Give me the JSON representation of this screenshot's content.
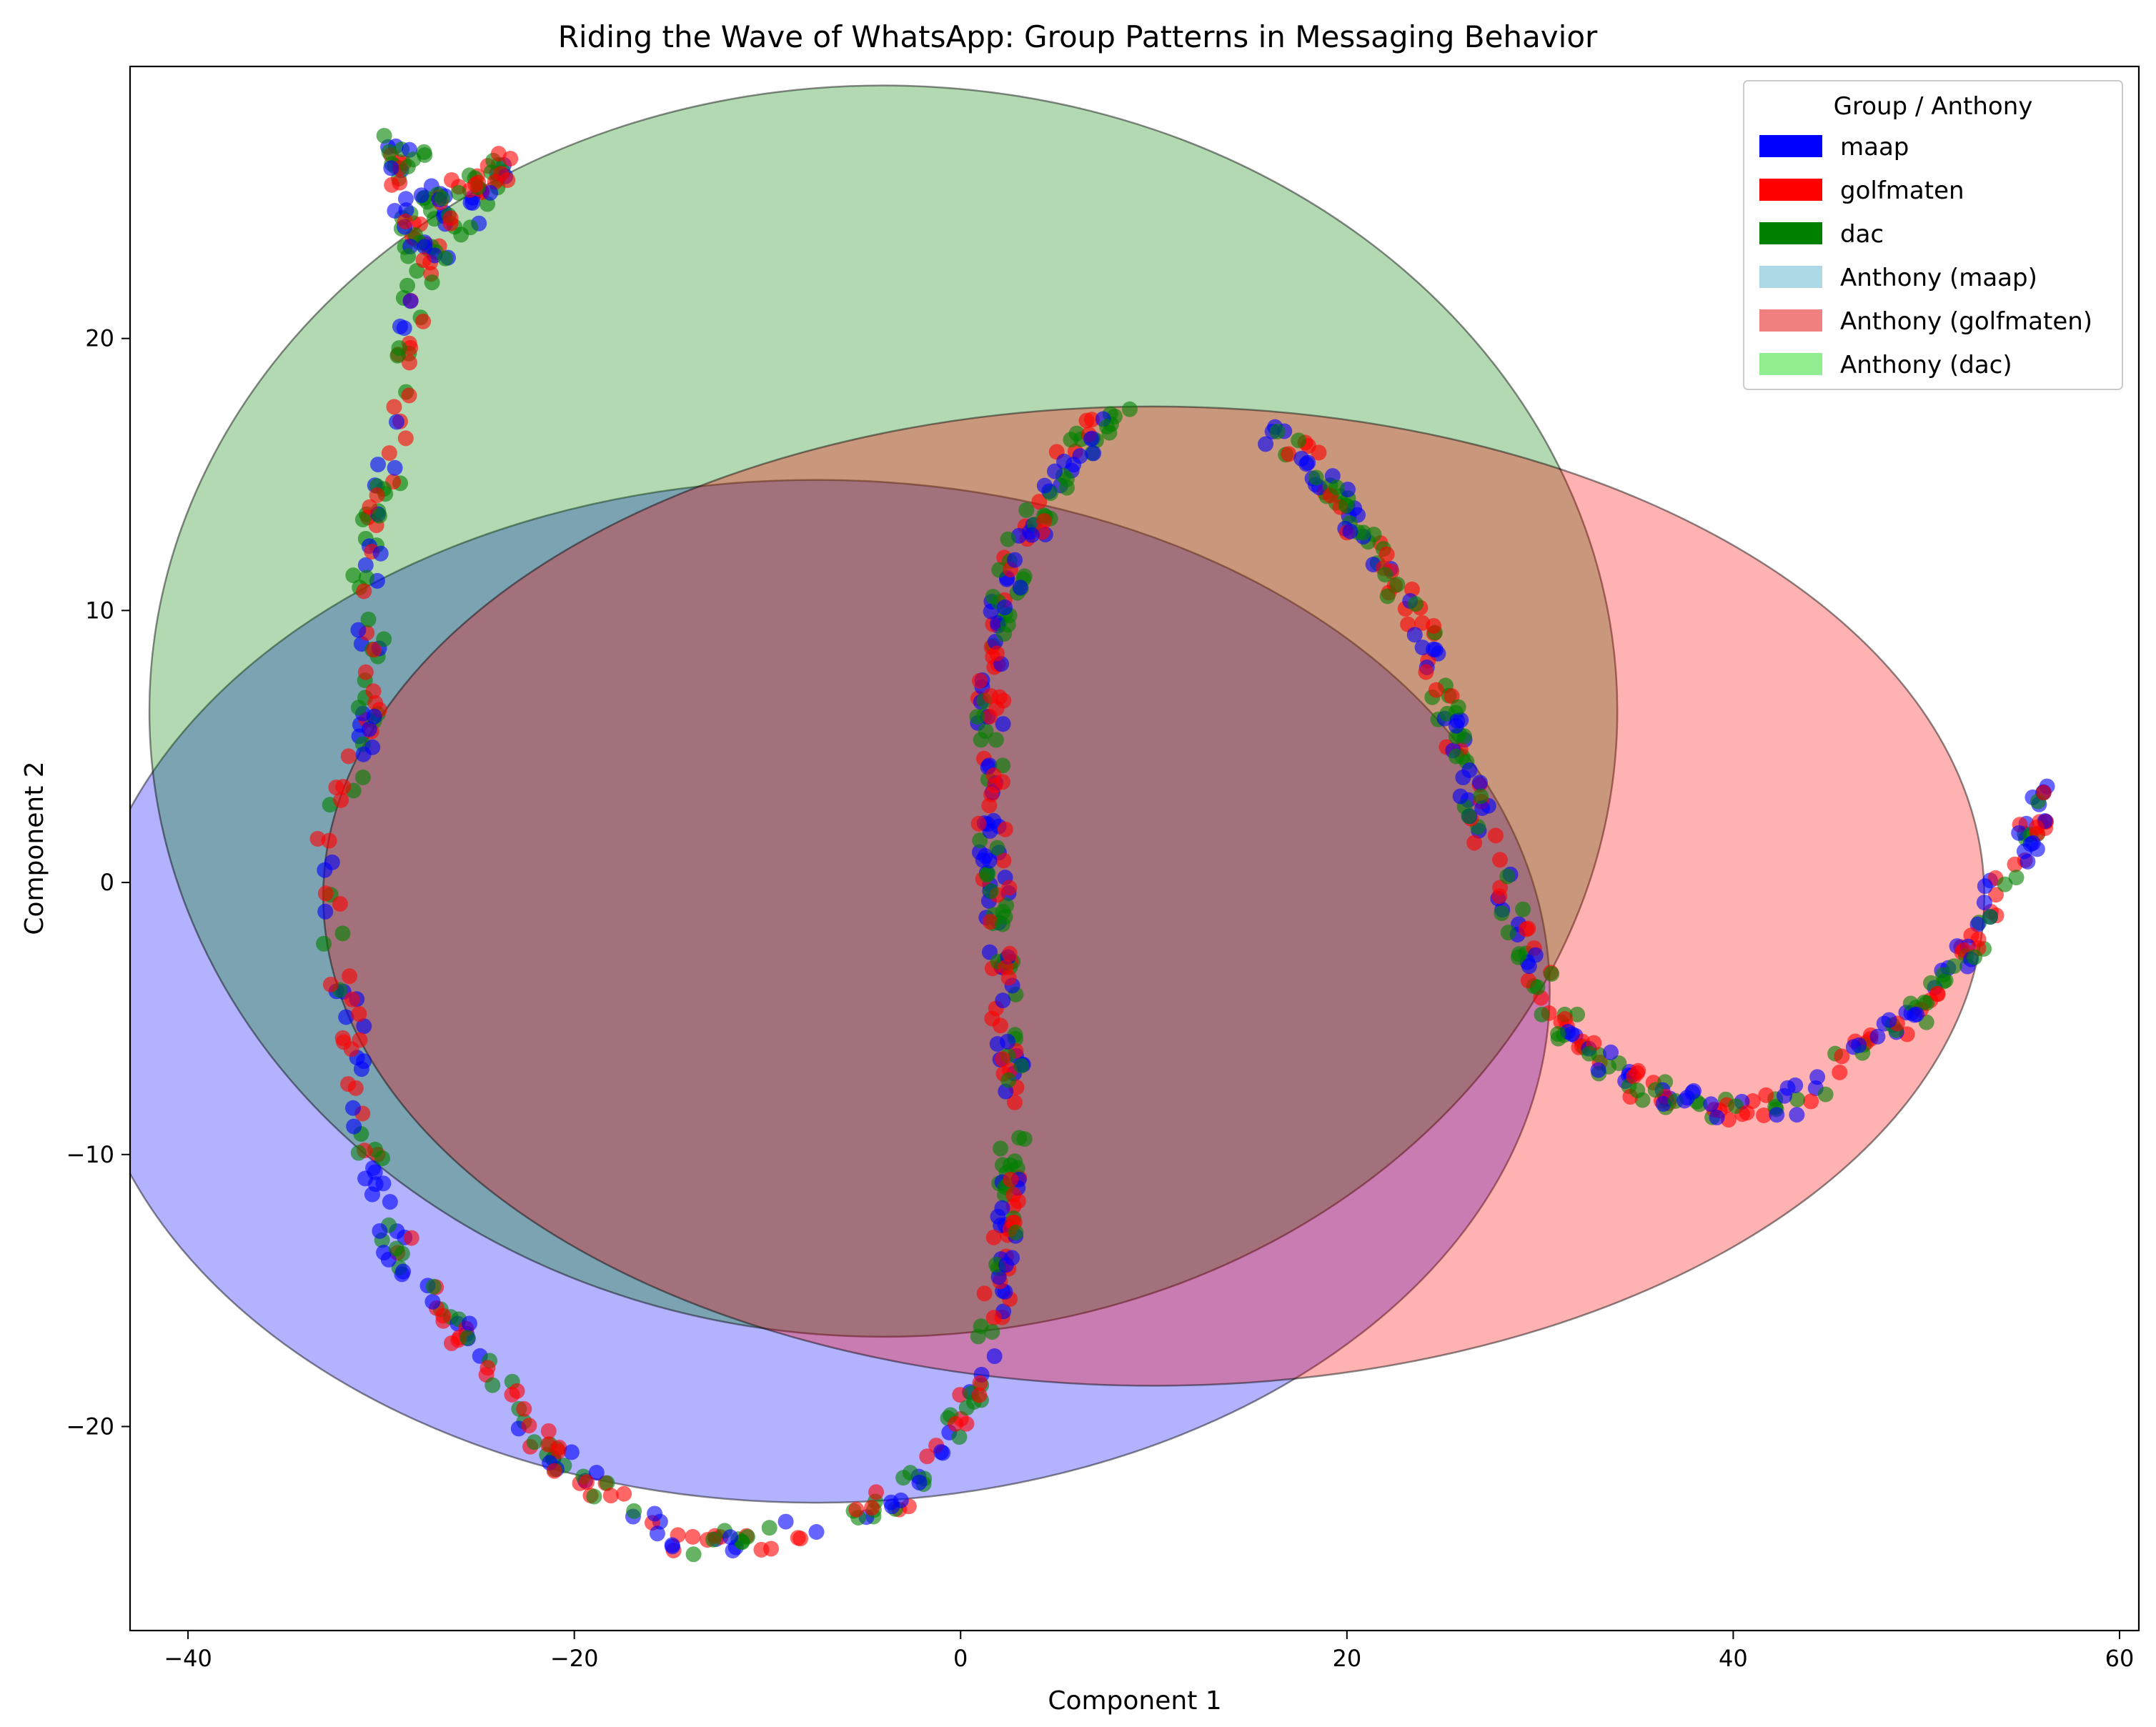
{
  "chart_data": {
    "type": "scatter",
    "title": "Riding the Wave of WhatsApp: Group Patterns in Messaging Behavior",
    "xlabel": "Component 1",
    "ylabel": "Component 2",
    "xlim": [
      -43,
      61
    ],
    "ylim": [
      -27.5,
      30
    ],
    "x_ticks": [
      -40,
      -20,
      0,
      20,
      40,
      60
    ],
    "y_ticks": [
      -20,
      -10,
      0,
      10,
      20
    ],
    "x_tick_labels": [
      "−40",
      "−20",
      "0",
      "20",
      "40",
      "60"
    ],
    "y_tick_labels": [
      "−20",
      "−10",
      "0",
      "10",
      "20"
    ],
    "grid": false,
    "legend": {
      "title": "Group / Anthony",
      "placement": "top-right",
      "entries": [
        {
          "label": "maap",
          "color": "#0000ff"
        },
        {
          "label": "golfmaten",
          "color": "#ff0000"
        },
        {
          "label": "dac",
          "color": "#008000"
        },
        {
          "label": "Anthony (maap)",
          "color": "#add8e6"
        },
        {
          "label": "Anthony (golfmaten)",
          "color": "#f08080"
        },
        {
          "label": "Anthony (dac)",
          "color": "#90ee90"
        }
      ]
    },
    "ellipses": [
      {
        "group": "maap",
        "color": "#0000ff",
        "center": [
          -7.5,
          -4.0
        ],
        "radii": [
          38,
          18.8
        ],
        "opacity": 0.3
      },
      {
        "group": "dac",
        "color": "#008000",
        "center": [
          -4.0,
          6.3
        ],
        "radii": [
          38,
          23
        ],
        "opacity": 0.3
      },
      {
        "group": "golfmaten",
        "color": "#ff0000",
        "center": [
          10.0,
          -0.5
        ],
        "radii": [
          43,
          18
        ],
        "opacity": 0.3
      }
    ],
    "colors": {
      "maap": "#0000ff",
      "golfmaten": "#ff0000",
      "dac": "#008000"
    },
    "curves": [
      {
        "name": "arc-upper-left",
        "path": [
          [
            -23.5,
            26.5
          ],
          [
            -25,
            25
          ],
          [
            -27,
            23.5
          ],
          [
            -28.5,
            21.5
          ],
          [
            -28.5,
            19.5
          ],
          [
            -29,
            17.5
          ],
          [
            -29.5,
            15
          ],
          [
            -30.5,
            13
          ],
          [
            -30.8,
            11
          ],
          [
            -30.5,
            9
          ],
          [
            -30.5,
            7
          ],
          [
            -31,
            5
          ],
          [
            -32,
            3
          ],
          [
            -32.8,
            1
          ],
          [
            -32.5,
            -1
          ],
          [
            -32.5,
            -3
          ],
          [
            -31.5,
            -5
          ],
          [
            -31.2,
            -7
          ],
          [
            -31,
            -9
          ],
          [
            -30.5,
            -11
          ],
          [
            -29.5,
            -13
          ],
          [
            -27.5,
            -15
          ],
          [
            -25.5,
            -17
          ],
          [
            -23.5,
            -19
          ],
          [
            -21,
            -21
          ],
          [
            -18,
            -22.8
          ],
          [
            -14,
            -24.3
          ],
          [
            -10,
            -24.1
          ],
          [
            -6,
            -23.5
          ],
          [
            -3,
            -22.5
          ],
          [
            -1,
            -21
          ],
          [
            0.5,
            -19
          ],
          [
            1.5,
            -17
          ]
        ]
      },
      {
        "name": "arc-middle",
        "path": [
          [
            1.5,
            -17
          ],
          [
            2,
            -14.5
          ],
          [
            2.5,
            -12
          ],
          [
            2.8,
            -9.5
          ],
          [
            2.6,
            -7
          ],
          [
            2.3,
            -4.5
          ],
          [
            2,
            -2
          ],
          [
            1.7,
            0.5
          ],
          [
            1.6,
            3
          ],
          [
            1.5,
            5.5
          ],
          [
            1.7,
            8
          ],
          [
            2.2,
            10
          ],
          [
            3,
            12
          ],
          [
            4.2,
            14
          ],
          [
            5.5,
            15.5
          ],
          [
            7,
            16.6
          ],
          [
            8.5,
            17.3
          ]
        ]
      },
      {
        "name": "arc-right",
        "path": [
          [
            16,
            16.5
          ],
          [
            18,
            15.5
          ],
          [
            20,
            13.5
          ],
          [
            22,
            11.5
          ],
          [
            24,
            9
          ],
          [
            25,
            7
          ],
          [
            25.5,
            5
          ],
          [
            26.5,
            3
          ],
          [
            27.5,
            1
          ],
          [
            28.5,
            -1
          ],
          [
            29.5,
            -3
          ],
          [
            31,
            -5
          ],
          [
            33,
            -6.5
          ],
          [
            35,
            -7.5
          ],
          [
            37.5,
            -8.1
          ],
          [
            40,
            -8.4
          ],
          [
            42.5,
            -8.2
          ],
          [
            45,
            -7
          ],
          [
            47,
            -6
          ],
          [
            49,
            -5
          ],
          [
            51,
            -3.5
          ],
          [
            52.5,
            -2
          ],
          [
            54,
            0
          ],
          [
            55.5,
            2
          ],
          [
            57,
            4.2
          ]
        ]
      },
      {
        "name": "arc-top",
        "path": [
          [
            -23.5,
            27
          ],
          [
            -24,
            26
          ],
          [
            -26,
            25.5
          ],
          [
            -27,
            24.5
          ],
          [
            -28,
            26
          ],
          [
            -29.2,
            27.3
          ],
          [
            -29,
            25
          ],
          [
            -28.2,
            23.5
          ],
          [
            -27,
            23
          ]
        ]
      }
    ],
    "points_per_curve": [
      300,
      240,
      320,
      90
    ]
  }
}
